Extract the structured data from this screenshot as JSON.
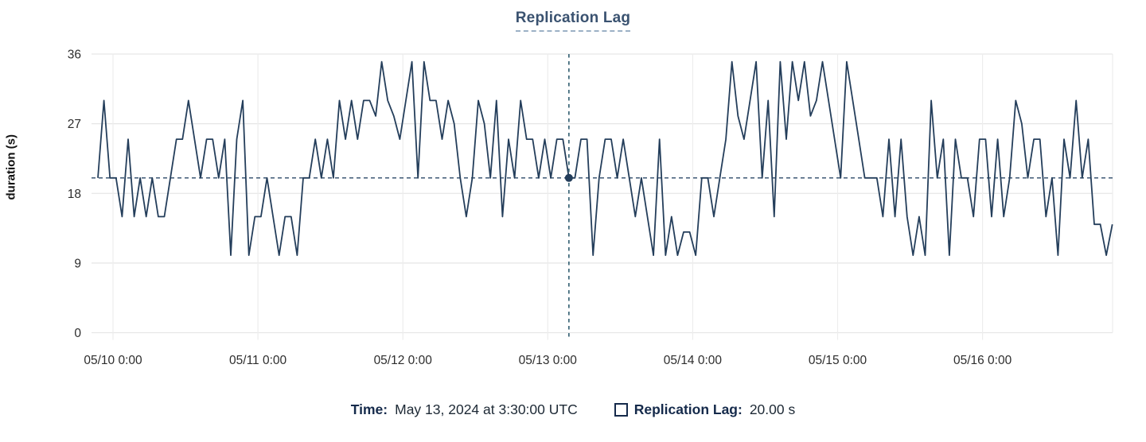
{
  "title": "Replication Lag",
  "y_axis": {
    "label": "duration (s)",
    "ticks": [
      36,
      27,
      18,
      9,
      0
    ]
  },
  "x_axis": {
    "ticks": [
      "05/10 0:00",
      "05/11 0:00",
      "05/12 0:00",
      "05/13 0:00",
      "05/14 0:00",
      "05/15 0:00",
      "05/16 0:00"
    ],
    "origin": "2024-05-10T00:00:00Z"
  },
  "tooltip": {
    "time_label": "Time:",
    "time_value": "May 13, 2024 at 3:30:00 UTC",
    "series_label": "Replication Lag:",
    "series_value": "20.00 s"
  },
  "colors": {
    "series_line": "#243e5b",
    "crosshair_dot": "#243e5b",
    "crosshair_vline": "#3c6677",
    "crosshair_hline": "#2d4a68",
    "gridline_h": "#e6e6e6",
    "gridline_v": "#ededed",
    "tick_label": "#2d2d2d",
    "title": "#3a5270"
  },
  "chart_data": {
    "type": "line",
    "title": "Replication Lag",
    "xlabel": "",
    "ylabel": "duration (s)",
    "ylim": [
      0,
      36
    ],
    "y_ticks": [
      0,
      9,
      18,
      27,
      36
    ],
    "x_tick_labels": [
      "05/10 0:00",
      "05/11 0:00",
      "05/12 0:00",
      "05/13 0:00",
      "05/14 0:00",
      "05/15 0:00",
      "05/16 0:00"
    ],
    "grid": true,
    "legend": [
      {
        "name": "Replication Lag"
      }
    ],
    "legend_position": "bottom",
    "x_start": "2024-05-09T21:30:00Z",
    "x_interval_hours": 1,
    "series": [
      {
        "name": "Replication Lag",
        "unit": "s",
        "values": [
          20,
          30,
          20,
          20,
          15,
          25,
          15,
          20,
          15,
          20,
          15,
          15,
          20,
          25,
          25,
          30,
          25,
          20,
          25,
          25,
          20,
          25,
          10,
          25,
          30,
          10,
          15,
          15,
          20,
          15,
          10,
          15,
          15,
          10,
          20,
          20,
          25,
          20,
          25,
          20,
          30,
          25,
          30,
          25,
          30,
          30,
          28,
          35,
          30,
          28,
          25,
          30,
          35,
          20,
          35,
          30,
          30,
          25,
          30,
          27,
          20,
          15,
          20,
          30,
          27,
          20,
          30,
          15,
          25,
          20,
          30,
          25,
          25,
          20,
          25,
          20,
          25,
          25,
          20,
          20,
          25,
          25,
          10,
          20,
          25,
          25,
          20,
          25,
          20,
          15,
          20,
          15,
          10,
          25,
          10,
          15,
          10,
          13,
          13,
          10,
          20,
          20,
          15,
          20,
          25,
          35,
          28,
          25,
          30,
          35,
          20,
          30,
          15,
          35,
          25,
          35,
          30,
          35,
          28,
          30,
          35,
          30,
          25,
          20,
          35,
          30,
          25,
          20,
          20,
          20,
          15,
          25,
          15,
          25,
          15,
          10,
          15,
          10,
          30,
          20,
          25,
          10,
          25,
          20,
          20,
          15,
          25,
          25,
          15,
          25,
          15,
          20,
          30,
          27,
          20,
          25,
          25,
          15,
          20,
          10,
          25,
          20,
          30,
          20,
          25,
          14,
          14,
          10,
          14
        ]
      }
    ],
    "crosshair": {
      "time": "2024-05-13T03:30:00Z",
      "value": 20,
      "horizontal_reference": 20
    }
  }
}
